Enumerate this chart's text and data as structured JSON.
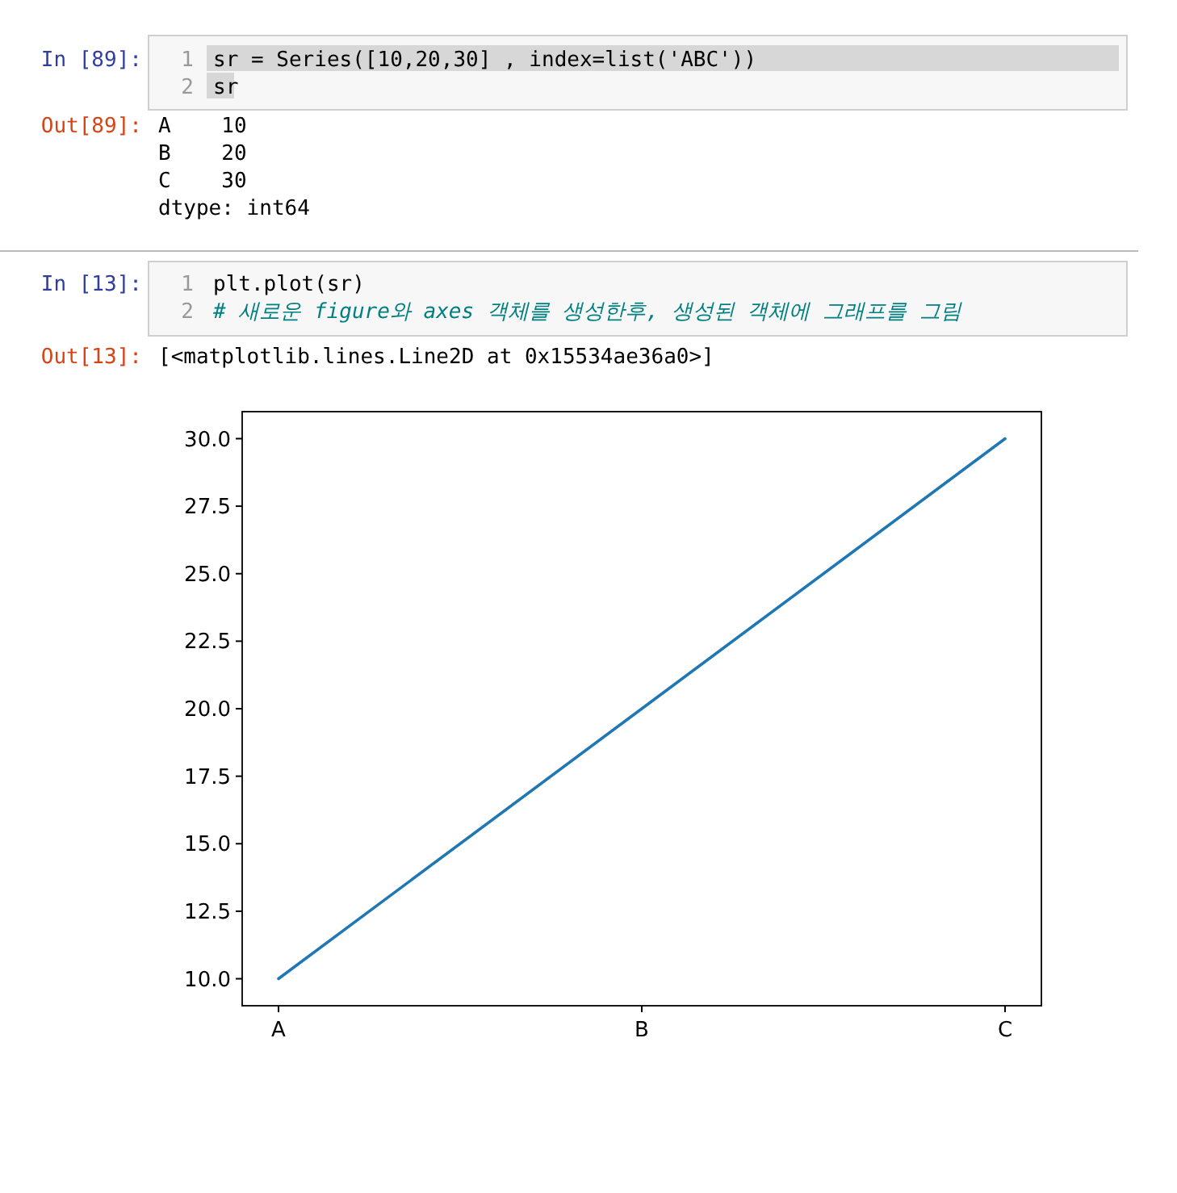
{
  "chart_data": {
    "type": "line",
    "categories": [
      "A",
      "B",
      "C"
    ],
    "series": [
      {
        "color": "#1f77b4",
        "values": [
          10,
          20,
          30
        ]
      }
    ],
    "ylim": [
      9,
      31
    ],
    "yticks": [
      {
        "value": 10,
        "label": "10.0"
      },
      {
        "value": 12.5,
        "label": "12.5"
      },
      {
        "value": 15,
        "label": "15.0"
      },
      {
        "value": 17.5,
        "label": "17.5"
      },
      {
        "value": 20,
        "label": "20.0"
      },
      {
        "value": 22.5,
        "label": "22.5"
      },
      {
        "value": 25,
        "label": "25.0"
      },
      {
        "value": 27.5,
        "label": "27.5"
      },
      {
        "value": 30,
        "label": "30.0"
      }
    ],
    "annotations": [
      "In [89]:",
      "1",
      "sr = Series([10,20,30] , index=list('ABC'))",
      "2",
      "sr",
      "Out[89]:",
      "A    10",
      "B    20",
      "C    30",
      "dtype: int64",
      "In [13]:",
      "1",
      "plt.plot(sr)",
      "2",
      "# 새로운 figure와 axes 객체를 생성한후, 생성된 객체에 그래프를 그림",
      "Out[13]:",
      "[<matplotlib.lines.Line2D at 0x15534ae36a0>]"
    ]
  }
}
